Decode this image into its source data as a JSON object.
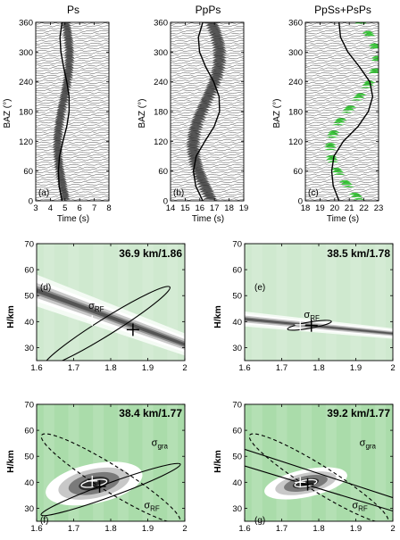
{
  "chart_data": [
    {
      "type": "heatmap",
      "panel": "a",
      "title": "Ps",
      "xlabel": "Time (s)",
      "ylabel": "BAZ (°)",
      "xlim": [
        3,
        8
      ],
      "ylim": [
        0,
        360
      ],
      "xticks": [
        "3",
        "4",
        "5",
        "6",
        "7",
        "8"
      ],
      "yticks": [
        "0",
        "60",
        "120",
        "180",
        "240",
        "300",
        "360"
      ],
      "center": 4.9,
      "amplitude": 0.4,
      "phase": 200,
      "band": 0.35,
      "trace_fill": "#555555",
      "trace_count": 72,
      "fit_curve": {
        "baz": [
          0,
          30,
          60,
          90,
          120,
          150,
          180,
          210,
          240,
          270,
          300,
          330,
          360
        ],
        "time": [
          4.8,
          4.6,
          4.55,
          4.62,
          4.86,
          5.12,
          5.28,
          5.28,
          5.12,
          4.9,
          4.72,
          4.66,
          4.8
        ]
      }
    },
    {
      "type": "heatmap",
      "panel": "b",
      "title": "PpPs",
      "xlabel": "Time (s)",
      "ylabel": "BAZ (°)",
      "xlim": [
        14,
        19
      ],
      "ylim": [
        0,
        360
      ],
      "xticks": [
        "14",
        "15",
        "16",
        "17",
        "18",
        "19"
      ],
      "yticks": [
        "0",
        "60",
        "120",
        "180",
        "240",
        "300",
        "360"
      ],
      "center": 16.45,
      "amplitude": 0.9,
      "phase": 200,
      "band": 0.5,
      "trace_fill": "#555555",
      "trace_count": 72,
      "fit_curve": {
        "baz": [
          0,
          30,
          60,
          90,
          120,
          150,
          180,
          210,
          240,
          270,
          300,
          330,
          360
        ],
        "time": [
          16.2,
          15.72,
          15.56,
          15.75,
          16.35,
          16.98,
          17.35,
          17.32,
          16.95,
          16.4,
          15.98,
          15.9,
          16.2
        ]
      }
    },
    {
      "type": "heatmap",
      "panel": "c",
      "title": "PpSs+PsPs",
      "xlabel": "Time (s)",
      "ylabel": "BAZ (°)",
      "xlim": [
        18,
        23
      ],
      "ylim": [
        0,
        360
      ],
      "xticks": [
        "18",
        "19",
        "20",
        "21",
        "22",
        "23"
      ],
      "yticks": [
        "0",
        "60",
        "120",
        "180",
        "240",
        "300",
        "360"
      ],
      "center": 21.3,
      "amplitude": 1.6,
      "phase": 195,
      "band": 0.4,
      "trace_fill": "#1fbf1f",
      "trace_count": 72,
      "fit_curve": {
        "baz": [
          0,
          30,
          60,
          90,
          120,
          150,
          180,
          210,
          240,
          270,
          300,
          330,
          360
        ],
        "time": [
          20.3,
          19.9,
          19.8,
          19.95,
          20.6,
          21.6,
          22.3,
          22.6,
          22.4,
          21.7,
          20.9,
          20.4,
          20.3
        ]
      }
    },
    {
      "type": "heatmap",
      "panel": "d",
      "ylabel": "H/km",
      "annotation": "36.9 km/1.86",
      "xlim": [
        1.6,
        2.0
      ],
      "ylim": [
        25,
        70
      ],
      "xticks": [
        "1.6",
        "1.7",
        "1.8",
        "1.9",
        "2"
      ],
      "yticks": [
        "30",
        "40",
        "50",
        "60",
        "70"
      ],
      "best": {
        "k": 1.86,
        "H": 36.9
      },
      "ridge_H_at_kmin": 52,
      "ridge_slope": -52,
      "ridge_halfwidth": 3.4,
      "background": "#cfe9cf",
      "contours": [
        {
          "label": "σRF",
          "center": [
            1.79,
            38.2
          ],
          "rx": 0.2,
          "ry": 3.2,
          "tilt": -32
        }
      ],
      "cross_white": {
        "k": 1.75,
        "H": 40.4
      }
    },
    {
      "type": "heatmap",
      "panel": "e",
      "ylabel": "H/km",
      "annotation": "38.5 km/1.78",
      "xlim": [
        1.6,
        2.0
      ],
      "ylim": [
        25,
        70
      ],
      "xticks": [
        "1.6",
        "1.7",
        "1.8",
        "1.9",
        "2"
      ],
      "yticks": [
        "30",
        "40",
        "50",
        "60",
        "70"
      ],
      "best": {
        "k": 1.78,
        "H": 38.5
      },
      "ridge_H_at_kmin": 41,
      "ridge_slope": -14,
      "ridge_halfwidth": 1.6,
      "background": "#cfe9cf",
      "contours": [
        {
          "label": "σRF",
          "center": [
            1.775,
            38.6
          ],
          "rx": 0.06,
          "ry": 1.2,
          "tilt": -10
        }
      ],
      "cross_white": {
        "k": 1.75,
        "H": 38.8
      }
    },
    {
      "type": "heatmap",
      "panel": "f",
      "ylabel": "H/km",
      "annotation": "38.4 km/1.77",
      "xlim": [
        1.6,
        2.0
      ],
      "ylim": [
        25,
        70
      ],
      "xticks": [
        "1.6",
        "1.7",
        "1.8",
        "1.9",
        "2"
      ],
      "yticks": [
        "30",
        "40",
        "50",
        "60",
        "70"
      ],
      "best": {
        "k": 1.77,
        "H": 38.4
      },
      "blob": {
        "k": 1.755,
        "H": 39.5,
        "rk": 0.07,
        "rH": 4.0
      },
      "background": "#aadcaa",
      "contours": [
        {
          "label": "σRF",
          "center": [
            1.8,
            37.2
          ],
          "rx": 0.2,
          "ry": 2.6,
          "tilt": -20
        },
        {
          "label": "σgra",
          "center": [
            1.8,
            41.5
          ],
          "rx": 0.22,
          "ry": 5.0,
          "tilt": 32,
          "dashed": true
        },
        {
          "center": [
            1.755,
            39.6
          ],
          "rx": 0.035,
          "ry": 1.3,
          "tilt": -10,
          "white": true
        }
      ],
      "cross_white": {
        "k": 1.75,
        "H": 40.5
      }
    },
    {
      "type": "heatmap",
      "panel": "g",
      "ylabel": "H/km",
      "annotation": "39.2 km/1.77",
      "xlim": [
        1.6,
        2.0
      ],
      "ylim": [
        25,
        70
      ],
      "xticks": [
        "1.6",
        "1.7",
        "1.8",
        "1.9",
        "2"
      ],
      "yticks": [
        "30",
        "40",
        "50",
        "60",
        "70"
      ],
      "best": {
        "k": 1.77,
        "H": 39.2
      },
      "blob": {
        "k": 1.765,
        "H": 39.6,
        "rk": 0.06,
        "rH": 2.8
      },
      "background": "#aadcaa",
      "contours": [
        {
          "label": "σRF",
          "band": true,
          "H_at_kmin": 49.5,
          "slope": -45,
          "gap": 3.2
        },
        {
          "label": "σgra",
          "center": [
            1.8,
            41.5
          ],
          "rx": 0.22,
          "ry": 5.0,
          "tilt": 32,
          "dashed": true
        },
        {
          "center": [
            1.765,
            39.6
          ],
          "rx": 0.03,
          "ry": 1.2,
          "tilt": -10,
          "white": true
        }
      ],
      "cross_white": {
        "k": 1.75,
        "H": 40.0
      }
    }
  ],
  "panel_labels": [
    "(a)",
    "(b)",
    "(c)",
    "(d)",
    "(e)",
    "(f)",
    "(g)"
  ],
  "sigma_rf": "σ",
  "sigma_rf_sub": "RF",
  "sigma_gra_sub": "gra"
}
